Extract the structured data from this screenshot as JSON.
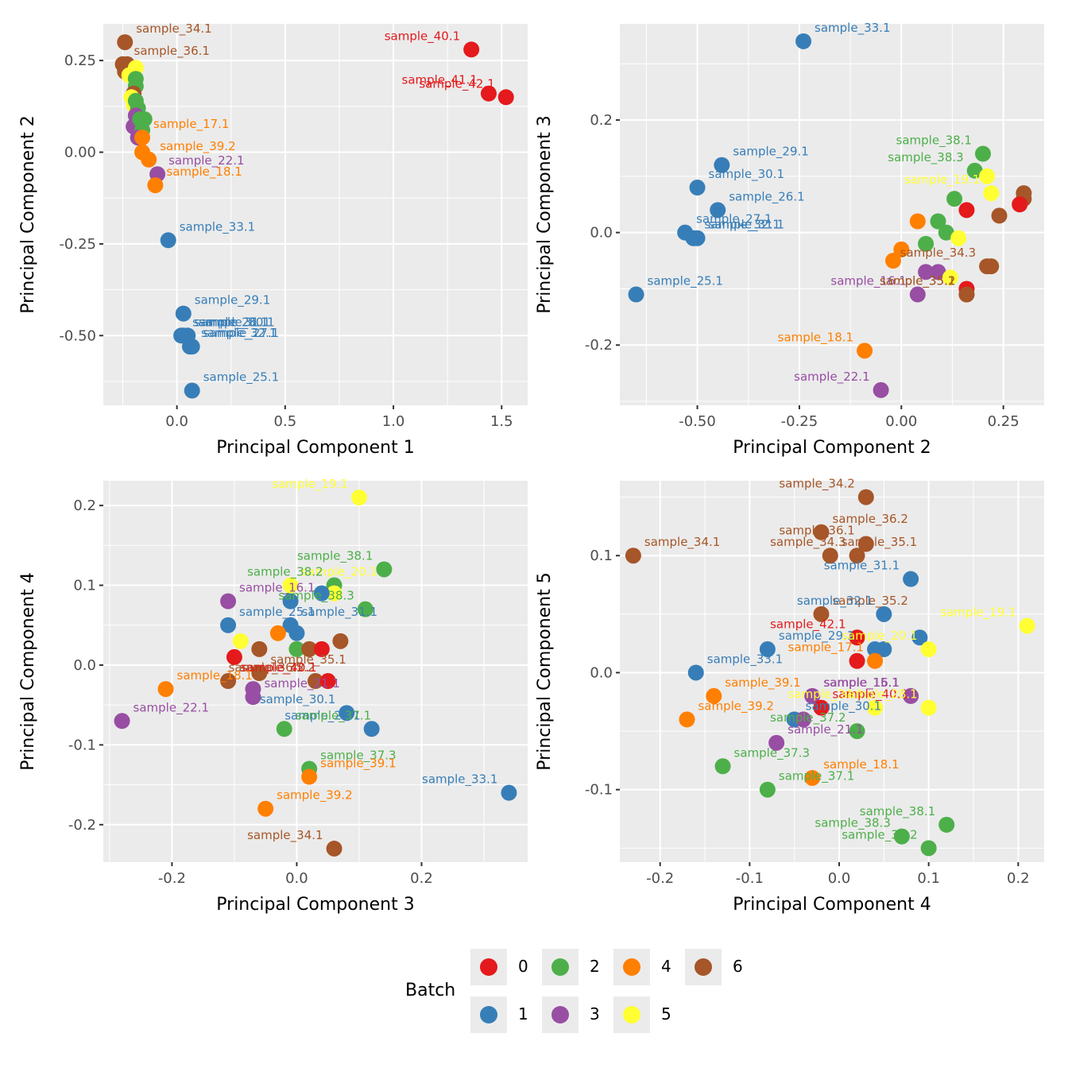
{
  "legend": {
    "title": "Batch",
    "entries": [
      {
        "batch": "0",
        "color": "#e41a1c"
      },
      {
        "batch": "1",
        "color": "#377eb8"
      },
      {
        "batch": "2",
        "color": "#4daf4a"
      },
      {
        "batch": "3",
        "color": "#984ea3"
      },
      {
        "batch": "4",
        "color": "#ff7f00"
      },
      {
        "batch": "5",
        "color": "#ffff33"
      },
      {
        "batch": "6",
        "color": "#a65628"
      }
    ]
  },
  "chart_data": [
    {
      "type": "scatter",
      "title": "",
      "xlabel": "Principal Component 1",
      "ylabel": "Principal Component 2",
      "xlim": [
        -0.34,
        1.62
      ],
      "ylim": [
        -0.69,
        0.35
      ],
      "xticks": [
        "0.0",
        "0.5",
        "1.0",
        "1.5"
      ],
      "xtick_values": [
        0,
        0.5,
        1.0,
        1.5
      ],
      "yticks": [
        "0.25",
        "0.00",
        "-0.25",
        "-0.50"
      ],
      "ytick_values": [
        0.25,
        0,
        -0.25,
        -0.5
      ],
      "grid": true,
      "points": [
        {
          "x": -0.24,
          "y": 0.3,
          "batch": "6",
          "label": "sample_34.1"
        },
        {
          "x": -0.25,
          "y": 0.24,
          "batch": "6",
          "label": "sample_36.1"
        },
        {
          "x": -0.23,
          "y": 0.24,
          "batch": "6",
          "label": ""
        },
        {
          "x": -0.24,
          "y": 0.22,
          "batch": "6",
          "label": ""
        },
        {
          "x": -0.22,
          "y": 0.21,
          "batch": "5",
          "label": ""
        },
        {
          "x": -0.19,
          "y": 0.23,
          "batch": "5",
          "label": ""
        },
        {
          "x": -0.19,
          "y": 0.2,
          "batch": "2",
          "label": ""
        },
        {
          "x": -0.19,
          "y": 0.18,
          "batch": "2",
          "label": ""
        },
        {
          "x": -0.2,
          "y": 0.16,
          "batch": "6",
          "label": ""
        },
        {
          "x": -0.21,
          "y": 0.15,
          "batch": "5",
          "label": ""
        },
        {
          "x": -0.2,
          "y": 0.13,
          "batch": "5",
          "label": ""
        },
        {
          "x": -0.19,
          "y": 0.14,
          "batch": "2",
          "label": ""
        },
        {
          "x": -0.18,
          "y": 0.12,
          "batch": "2",
          "label": ""
        },
        {
          "x": -0.19,
          "y": 0.1,
          "batch": "3",
          "label": ""
        },
        {
          "x": -0.2,
          "y": 0.07,
          "batch": "3",
          "label": ""
        },
        {
          "x": -0.17,
          "y": 0.09,
          "batch": "2",
          "label": ""
        },
        {
          "x": -0.15,
          "y": 0.09,
          "batch": "2",
          "label": ""
        },
        {
          "x": -0.16,
          "y": 0.06,
          "batch": "2",
          "label": ""
        },
        {
          "x": -0.18,
          "y": 0.04,
          "batch": "3",
          "label": ""
        },
        {
          "x": -0.16,
          "y": 0.04,
          "batch": "4",
          "label": "sample_17.1"
        },
        {
          "x": -0.16,
          "y": 0.0,
          "batch": "4",
          "label": ""
        },
        {
          "x": -0.13,
          "y": -0.02,
          "batch": "4",
          "label": "sample_39.2"
        },
        {
          "x": -0.09,
          "y": -0.06,
          "batch": "3",
          "label": "sample_22.1"
        },
        {
          "x": -0.1,
          "y": -0.09,
          "batch": "4",
          "label": "sample_18.1"
        },
        {
          "x": -0.04,
          "y": -0.24,
          "batch": "1",
          "label": "sample_33.1"
        },
        {
          "x": 0.03,
          "y": -0.44,
          "batch": "1",
          "label": "sample_29.1"
        },
        {
          "x": 0.02,
          "y": -0.5,
          "batch": "1",
          "label": "sample_26.1"
        },
        {
          "x": 0.05,
          "y": -0.5,
          "batch": "1",
          "label": "sample_30.1"
        },
        {
          "x": 0.03,
          "y": -0.5,
          "batch": "1",
          "label": "sample_31.1"
        },
        {
          "x": 0.06,
          "y": -0.53,
          "batch": "1",
          "label": "sample_32.1"
        },
        {
          "x": 0.07,
          "y": -0.53,
          "batch": "1",
          "label": "sample_27.1"
        },
        {
          "x": 0.07,
          "y": -0.65,
          "batch": "1",
          "label": "sample_25.1"
        },
        {
          "x": 1.36,
          "y": 0.28,
          "batch": "0",
          "label": "sample_40.1"
        },
        {
          "x": 1.44,
          "y": 0.16,
          "batch": "0",
          "label": "sample_41.1"
        },
        {
          "x": 1.52,
          "y": 0.15,
          "batch": "0",
          "label": "sample_42.1"
        }
      ]
    },
    {
      "type": "scatter",
      "title": "",
      "xlabel": "Principal Component 2",
      "ylabel": "Principal Component 3",
      "xlim": [
        -0.69,
        0.35
      ],
      "ylim": [
        -0.307,
        0.371
      ],
      "xticks": [
        "-0.50",
        "-0.25",
        "0.00",
        "0.25"
      ],
      "xtick_values": [
        -0.5,
        -0.25,
        0,
        0.25
      ],
      "yticks": [
        "0.2",
        "0.0",
        "-0.2"
      ],
      "ytick_values": [
        0.2,
        0,
        -0.2
      ],
      "grid": true,
      "points": [
        {
          "x": -0.24,
          "y": 0.34,
          "batch": "1",
          "label": "sample_33.1"
        },
        {
          "x": -0.44,
          "y": 0.12,
          "batch": "1",
          "label": "sample_29.1"
        },
        {
          "x": -0.5,
          "y": 0.08,
          "batch": "1",
          "label": "sample_30.1"
        },
        {
          "x": -0.45,
          "y": 0.04,
          "batch": "1",
          "label": "sample_26.1"
        },
        {
          "x": -0.53,
          "y": 0.0,
          "batch": "1",
          "label": "sample_27.1"
        },
        {
          "x": -0.51,
          "y": -0.01,
          "batch": "1",
          "label": "sample_32.1"
        },
        {
          "x": -0.5,
          "y": -0.01,
          "batch": "1",
          "label": "sample_31.1"
        },
        {
          "x": -0.65,
          "y": -0.11,
          "batch": "1",
          "label": "sample_25.1"
        },
        {
          "x": 0.2,
          "y": 0.14,
          "batch": "2",
          "label": "sample_38.1"
        },
        {
          "x": 0.18,
          "y": 0.11,
          "batch": "2",
          "label": "sample_38.3"
        },
        {
          "x": 0.21,
          "y": 0.1,
          "batch": "5",
          "label": ""
        },
        {
          "x": 0.22,
          "y": 0.07,
          "batch": "5",
          "label": "sample_19.1"
        },
        {
          "x": 0.3,
          "y": 0.07,
          "batch": "6",
          "label": ""
        },
        {
          "x": 0.3,
          "y": 0.06,
          "batch": "6",
          "label": ""
        },
        {
          "x": 0.29,
          "y": 0.05,
          "batch": "0",
          "label": ""
        },
        {
          "x": 0.13,
          "y": 0.06,
          "batch": "2",
          "label": ""
        },
        {
          "x": 0.16,
          "y": 0.04,
          "batch": "0",
          "label": ""
        },
        {
          "x": 0.24,
          "y": 0.03,
          "batch": "6",
          "label": ""
        },
        {
          "x": 0.04,
          "y": 0.02,
          "batch": "4",
          "label": ""
        },
        {
          "x": 0.09,
          "y": 0.02,
          "batch": "2",
          "label": ""
        },
        {
          "x": 0.11,
          "y": 0.0,
          "batch": "2",
          "label": ""
        },
        {
          "x": 0.14,
          "y": -0.01,
          "batch": "5",
          "label": ""
        },
        {
          "x": 0.06,
          "y": -0.02,
          "batch": "2",
          "label": ""
        },
        {
          "x": 0.0,
          "y": -0.03,
          "batch": "4",
          "label": ""
        },
        {
          "x": -0.02,
          "y": -0.05,
          "batch": "4",
          "label": ""
        },
        {
          "x": 0.21,
          "y": -0.06,
          "batch": "6",
          "label": "sample_34.3"
        },
        {
          "x": 0.22,
          "y": -0.06,
          "batch": "6",
          "label": ""
        },
        {
          "x": 0.06,
          "y": -0.07,
          "batch": "3",
          "label": ""
        },
        {
          "x": 0.09,
          "y": -0.07,
          "batch": "3",
          "label": ""
        },
        {
          "x": 0.12,
          "y": -0.08,
          "batch": "5",
          "label": ""
        },
        {
          "x": 0.16,
          "y": -0.11,
          "batch": "6",
          "label": "sample_35.1"
        },
        {
          "x": 0.16,
          "y": -0.1,
          "batch": "0",
          "label": ""
        },
        {
          "x": 0.04,
          "y": -0.11,
          "batch": "3",
          "label": "sample_16.1"
        },
        {
          "x": 0.16,
          "y": -0.11,
          "batch": "6",
          "label": "sample_35.2"
        },
        {
          "x": -0.09,
          "y": -0.21,
          "batch": "4",
          "label": "sample_18.1"
        },
        {
          "x": -0.05,
          "y": -0.28,
          "batch": "3",
          "label": "sample_22.1"
        }
      ]
    },
    {
      "type": "scatter",
      "title": "",
      "xlabel": "Principal Component 3",
      "ylabel": "Principal Component 4",
      "xlim": [
        -0.31,
        0.37
      ],
      "ylim": [
        -0.247,
        0.231
      ],
      "xticks": [
        "-0.2",
        "0.0",
        "0.2"
      ],
      "xtick_values": [
        -0.2,
        0,
        0.2
      ],
      "yticks": [
        "0.2",
        "0.1",
        "0.0",
        "-0.1",
        "-0.2"
      ],
      "ytick_values": [
        0.2,
        0.1,
        0,
        -0.1,
        -0.2
      ],
      "grid": true,
      "points": [
        {
          "x": 0.1,
          "y": 0.21,
          "batch": "5",
          "label": "sample_19.1"
        },
        {
          "x": 0.14,
          "y": 0.12,
          "batch": "2",
          "label": "sample_38.1"
        },
        {
          "x": -0.01,
          "y": 0.1,
          "batch": "5",
          "label": "sample_20.1"
        },
        {
          "x": 0.06,
          "y": 0.1,
          "batch": "2",
          "label": "sample_38.2"
        },
        {
          "x": 0.06,
          "y": 0.09,
          "batch": "5",
          "label": ""
        },
        {
          "x": 0.04,
          "y": 0.09,
          "batch": "1",
          "label": ""
        },
        {
          "x": -0.01,
          "y": 0.08,
          "batch": "1",
          "label": ""
        },
        {
          "x": -0.11,
          "y": 0.08,
          "batch": "3",
          "label": "sample_16.1"
        },
        {
          "x": 0.11,
          "y": 0.07,
          "batch": "2",
          "label": "sample_38.3"
        },
        {
          "x": -0.01,
          "y": 0.05,
          "batch": "1",
          "label": "sample_31.1"
        },
        {
          "x": -0.11,
          "y": 0.05,
          "batch": "1",
          "label": "sample_25.1"
        },
        {
          "x": 0.0,
          "y": 0.04,
          "batch": "1",
          "label": ""
        },
        {
          "x": -0.03,
          "y": 0.04,
          "batch": "4",
          "label": ""
        },
        {
          "x": -0.09,
          "y": 0.03,
          "batch": "5",
          "label": ""
        },
        {
          "x": 0.0,
          "y": 0.02,
          "batch": "2",
          "label": ""
        },
        {
          "x": 0.02,
          "y": 0.02,
          "batch": "6",
          "label": ""
        },
        {
          "x": 0.07,
          "y": 0.03,
          "batch": "6",
          "label": ""
        },
        {
          "x": 0.04,
          "y": 0.02,
          "batch": "0",
          "label": ""
        },
        {
          "x": -0.1,
          "y": 0.01,
          "batch": "0",
          "label": ""
        },
        {
          "x": -0.06,
          "y": 0.02,
          "batch": "6",
          "label": ""
        },
        {
          "x": 0.03,
          "y": -0.02,
          "batch": "6",
          "label": "sample_36.2"
        },
        {
          "x": -0.06,
          "y": -0.01,
          "batch": "6",
          "label": "sample_35.1"
        },
        {
          "x": -0.11,
          "y": -0.02,
          "batch": "6",
          "label": "sample_35.2"
        },
        {
          "x": -0.07,
          "y": -0.03,
          "batch": "3",
          "label": ""
        },
        {
          "x": 0.05,
          "y": -0.02,
          "batch": "0",
          "label": "sample_40.1"
        },
        {
          "x": -0.21,
          "y": -0.03,
          "batch": "4",
          "label": "sample_18.1"
        },
        {
          "x": -0.07,
          "y": -0.04,
          "batch": "3",
          "label": "sample_21.1"
        },
        {
          "x": 0.08,
          "y": -0.06,
          "batch": "1",
          "label": "sample_30.1"
        },
        {
          "x": 0.12,
          "y": -0.08,
          "batch": "1",
          "label": "sample_29.1"
        },
        {
          "x": -0.02,
          "y": -0.08,
          "batch": "2",
          "label": "sample_37.1"
        },
        {
          "x": -0.28,
          "y": -0.07,
          "batch": "3",
          "label": "sample_22.1"
        },
        {
          "x": 0.02,
          "y": -0.13,
          "batch": "2",
          "label": "sample_37.3"
        },
        {
          "x": 0.02,
          "y": -0.14,
          "batch": "4",
          "label": "sample_39.1"
        },
        {
          "x": -0.05,
          "y": -0.18,
          "batch": "4",
          "label": "sample_39.2"
        },
        {
          "x": 0.34,
          "y": -0.16,
          "batch": "1",
          "label": "sample_33.1"
        },
        {
          "x": 0.06,
          "y": -0.23,
          "batch": "6",
          "label": "sample_34.1"
        }
      ]
    },
    {
      "type": "scatter",
      "title": "",
      "xlabel": "Principal Component 4",
      "ylabel": "Principal Component 5",
      "xlim": [
        -0.245,
        0.229
      ],
      "ylim": [
        -0.162,
        0.164
      ],
      "xticks": [
        "-0.2",
        "-0.1",
        "0.0",
        "0.1",
        "0.2"
      ],
      "xtick_values": [
        -0.2,
        -0.1,
        0,
        0.1,
        0.2
      ],
      "yticks": [
        "0.1",
        "0.0",
        "-0.1"
      ],
      "ytick_values": [
        0.1,
        0,
        -0.1
      ],
      "grid": true,
      "points": [
        {
          "x": 0.03,
          "y": 0.15,
          "batch": "6",
          "label": "sample_34.2"
        },
        {
          "x": -0.02,
          "y": 0.12,
          "batch": "6",
          "label": "sample_36.2"
        },
        {
          "x": 0.03,
          "y": 0.11,
          "batch": "6",
          "label": "sample_36.1"
        },
        {
          "x": -0.23,
          "y": 0.1,
          "batch": "6",
          "label": "sample_34.1"
        },
        {
          "x": -0.01,
          "y": 0.1,
          "batch": "6",
          "label": "sample_35.1"
        },
        {
          "x": 0.02,
          "y": 0.1,
          "batch": "6",
          "label": "sample_34.3"
        },
        {
          "x": 0.08,
          "y": 0.08,
          "batch": "1",
          "label": "sample_31.1"
        },
        {
          "x": -0.02,
          "y": 0.05,
          "batch": "6",
          "label": "sample_35.2"
        },
        {
          "x": 0.05,
          "y": 0.05,
          "batch": "1",
          "label": "sample_32.1"
        },
        {
          "x": 0.21,
          "y": 0.04,
          "batch": "5",
          "label": "sample_19.1"
        },
        {
          "x": 0.02,
          "y": 0.03,
          "batch": "0",
          "label": "sample_42.1"
        },
        {
          "x": 0.09,
          "y": 0.03,
          "batch": "1",
          "label": ""
        },
        {
          "x": 0.04,
          "y": 0.02,
          "batch": "1",
          "label": ""
        },
        {
          "x": 0.05,
          "y": 0.02,
          "batch": "1",
          "label": ""
        },
        {
          "x": -0.08,
          "y": 0.02,
          "batch": "1",
          "label": "sample_29.1"
        },
        {
          "x": 0.1,
          "y": 0.02,
          "batch": "5",
          "label": "sample_20.1"
        },
        {
          "x": 0.02,
          "y": 0.01,
          "batch": "0",
          "label": ""
        },
        {
          "x": 0.04,
          "y": 0.01,
          "batch": "4",
          "label": "sample_17.1"
        },
        {
          "x": -0.16,
          "y": 0.0,
          "batch": "1",
          "label": "sample_33.1"
        },
        {
          "x": 0.08,
          "y": -0.02,
          "batch": "3",
          "label": "sample_16.1"
        },
        {
          "x": -0.14,
          "y": -0.02,
          "batch": "4",
          "label": "sample_39.1"
        },
        {
          "x": -0.03,
          "y": -0.02,
          "batch": "3",
          "label": "sample_15.1"
        },
        {
          "x": 0.04,
          "y": -0.03,
          "batch": "5",
          "label": "sample_24.1"
        },
        {
          "x": -0.02,
          "y": -0.03,
          "batch": "0",
          "label": "sample_40.1"
        },
        {
          "x": 0.1,
          "y": -0.03,
          "batch": "5",
          "label": "sample_28.1"
        },
        {
          "x": -0.17,
          "y": -0.04,
          "batch": "4",
          "label": "sample_39.2"
        },
        {
          "x": -0.05,
          "y": -0.04,
          "batch": "1",
          "label": "sample_30.1"
        },
        {
          "x": -0.04,
          "y": -0.04,
          "batch": "3",
          "label": ""
        },
        {
          "x": 0.02,
          "y": -0.05,
          "batch": "2",
          "label": "sample_37.2"
        },
        {
          "x": -0.07,
          "y": -0.06,
          "batch": "3",
          "label": "sample_21.1"
        },
        {
          "x": -0.13,
          "y": -0.08,
          "batch": "2",
          "label": "sample_37.3"
        },
        {
          "x": -0.03,
          "y": -0.09,
          "batch": "4",
          "label": "sample_18.1"
        },
        {
          "x": -0.08,
          "y": -0.1,
          "batch": "2",
          "label": "sample_37.1"
        },
        {
          "x": 0.12,
          "y": -0.13,
          "batch": "2",
          "label": "sample_38.1"
        },
        {
          "x": 0.07,
          "y": -0.14,
          "batch": "2",
          "label": "sample_38.3"
        },
        {
          "x": 0.1,
          "y": -0.15,
          "batch": "2",
          "label": "sample_38.2"
        }
      ]
    }
  ]
}
